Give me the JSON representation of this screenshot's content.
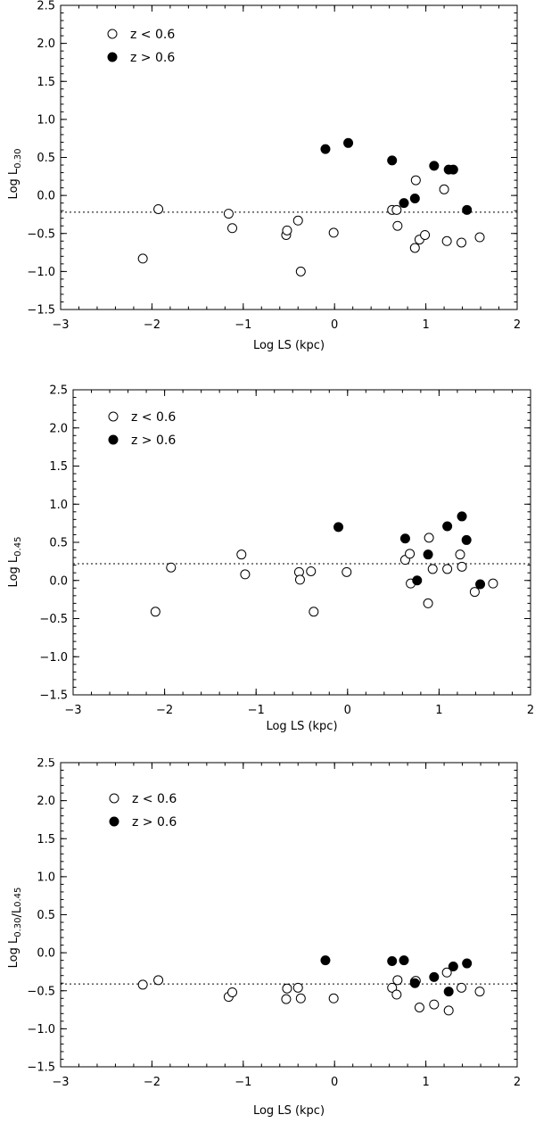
{
  "legend": {
    "low_z": "z < 0.6",
    "high_z": "z > 0.6",
    "low_z_marker": "open circle",
    "high_z_marker": "filled circle"
  },
  "chart_data": [
    {
      "type": "scatter",
      "xlabel": "Log LS (kpc)",
      "ylabel": "Log L0.30",
      "xlim": [
        -3,
        2
      ],
      "ylim": [
        -1.5,
        2.5
      ],
      "xticks": [
        -3,
        -2,
        -1,
        0,
        1,
        2
      ],
      "xtick_labels": [
        "−3",
        "−2",
        "−1",
        "0",
        "1",
        "2"
      ],
      "yticks": [
        -1.5,
        -1.0,
        -0.5,
        0.0,
        0.5,
        1.0,
        1.5,
        2.0,
        2.5
      ],
      "ytick_labels": [
        "−1.5",
        "−1.0",
        "−0.5",
        "0.0",
        "0.5",
        "1.0",
        "1.5",
        "2.0",
        "2.5"
      ],
      "reference_y": -0.22,
      "legend_position": "top-left",
      "series": [
        {
          "name": "z < 0.6",
          "marker": "open",
          "x": [
            -2.1,
            -1.93,
            -1.16,
            -1.12,
            -0.53,
            -0.52,
            -0.4,
            -0.37,
            -0.01,
            0.63,
            0.68,
            0.69,
            0.88,
            0.89,
            0.93,
            0.99,
            1.2,
            1.23,
            1.39,
            1.59
          ],
          "y": [
            -0.83,
            -0.18,
            -0.24,
            -0.43,
            -0.52,
            -0.46,
            -0.33,
            -1.0,
            -0.49,
            -0.19,
            -0.19,
            -0.4,
            -0.69,
            0.2,
            -0.58,
            -0.52,
            0.08,
            -0.6,
            -0.62,
            -0.55
          ]
        },
        {
          "name": "z > 0.6",
          "marker": "filled",
          "x": [
            -0.1,
            0.15,
            0.63,
            0.76,
            0.88,
            1.09,
            1.25,
            1.3,
            1.45
          ],
          "y": [
            0.61,
            0.69,
            0.46,
            -0.1,
            -0.04,
            0.39,
            0.34,
            0.34,
            -0.19
          ]
        }
      ]
    },
    {
      "type": "scatter",
      "xlabel": "Log LS (kpc)",
      "ylabel": "Log L0.45",
      "xlim": [
        -3,
        2
      ],
      "ylim": [
        -1.5,
        2.5
      ],
      "xticks": [
        -3,
        -2,
        -1,
        0,
        1,
        2
      ],
      "xtick_labels": [
        "−3",
        "−2",
        "−1",
        "0",
        "1",
        "2"
      ],
      "yticks": [
        -1.5,
        -1.0,
        -0.5,
        0.0,
        0.5,
        1.0,
        1.5,
        2.0,
        2.5
      ],
      "ytick_labels": [
        "−1.5",
        "−1.0",
        "−0.5",
        "0.0",
        "0.5",
        "1.0",
        "1.5",
        "2.0",
        "2.5"
      ],
      "reference_y": 0.22,
      "legend_position": "top-left",
      "series": [
        {
          "name": "z < 0.6",
          "marker": "open",
          "x": [
            -2.1,
            -1.93,
            -1.16,
            -1.12,
            -0.53,
            -0.52,
            -0.4,
            -0.37,
            -0.01,
            0.63,
            0.68,
            0.69,
            0.88,
            0.89,
            0.93,
            1.09,
            1.23,
            1.25,
            1.39,
            1.59
          ],
          "y": [
            -0.41,
            0.17,
            0.34,
            0.08,
            0.11,
            0.01,
            0.12,
            -0.41,
            0.11,
            0.27,
            0.35,
            -0.04,
            -0.3,
            0.56,
            0.15,
            0.15,
            0.34,
            0.18,
            -0.15,
            -0.04
          ]
        },
        {
          "name": "z > 0.6",
          "marker": "filled",
          "x": [
            -0.1,
            0.63,
            0.76,
            0.88,
            1.09,
            1.25,
            1.3,
            1.45
          ],
          "y": [
            0.7,
            0.55,
            0.0,
            0.34,
            0.71,
            0.84,
            0.53,
            -0.05
          ]
        }
      ]
    },
    {
      "type": "scatter",
      "xlabel": "Log LS (kpc)",
      "ylabel": "Log L0.30/L0.45",
      "xlim": [
        -3,
        2
      ],
      "ylim": [
        -1.5,
        2.5
      ],
      "xticks": [
        -3,
        -2,
        -1,
        0,
        1,
        2
      ],
      "xtick_labels": [
        "−3",
        "−2",
        "−1",
        "0",
        "1",
        "2"
      ],
      "yticks": [
        -1.5,
        -1.0,
        -0.5,
        0.0,
        0.5,
        1.0,
        1.5,
        2.0,
        2.5
      ],
      "ytick_labels": [
        "−1.5",
        "−1.0",
        "−0.5",
        "0.0",
        "0.5",
        "1.0",
        "1.5",
        "2.0",
        "2.5"
      ],
      "reference_y": -0.41,
      "legend_position": "top-left",
      "series": [
        {
          "name": "z < 0.6",
          "marker": "open",
          "x": [
            -2.1,
            -1.93,
            -1.16,
            -1.12,
            -0.53,
            -0.52,
            -0.4,
            -0.37,
            -0.01,
            0.63,
            0.68,
            0.69,
            0.88,
            0.89,
            0.93,
            1.09,
            1.23,
            1.25,
            1.39,
            1.59
          ],
          "y": [
            -0.42,
            -0.36,
            -0.58,
            -0.52,
            -0.61,
            -0.47,
            -0.46,
            -0.6,
            -0.6,
            -0.46,
            -0.55,
            -0.36,
            -0.38,
            -0.37,
            -0.72,
            -0.68,
            -0.26,
            -0.76,
            -0.46,
            -0.51
          ]
        },
        {
          "name": "z > 0.6",
          "marker": "filled",
          "x": [
            -0.1,
            0.63,
            0.76,
            0.88,
            1.09,
            1.25,
            1.3,
            1.45
          ],
          "y": [
            -0.1,
            -0.11,
            -0.1,
            -0.4,
            -0.32,
            -0.51,
            -0.18,
            -0.14
          ]
        }
      ]
    }
  ]
}
